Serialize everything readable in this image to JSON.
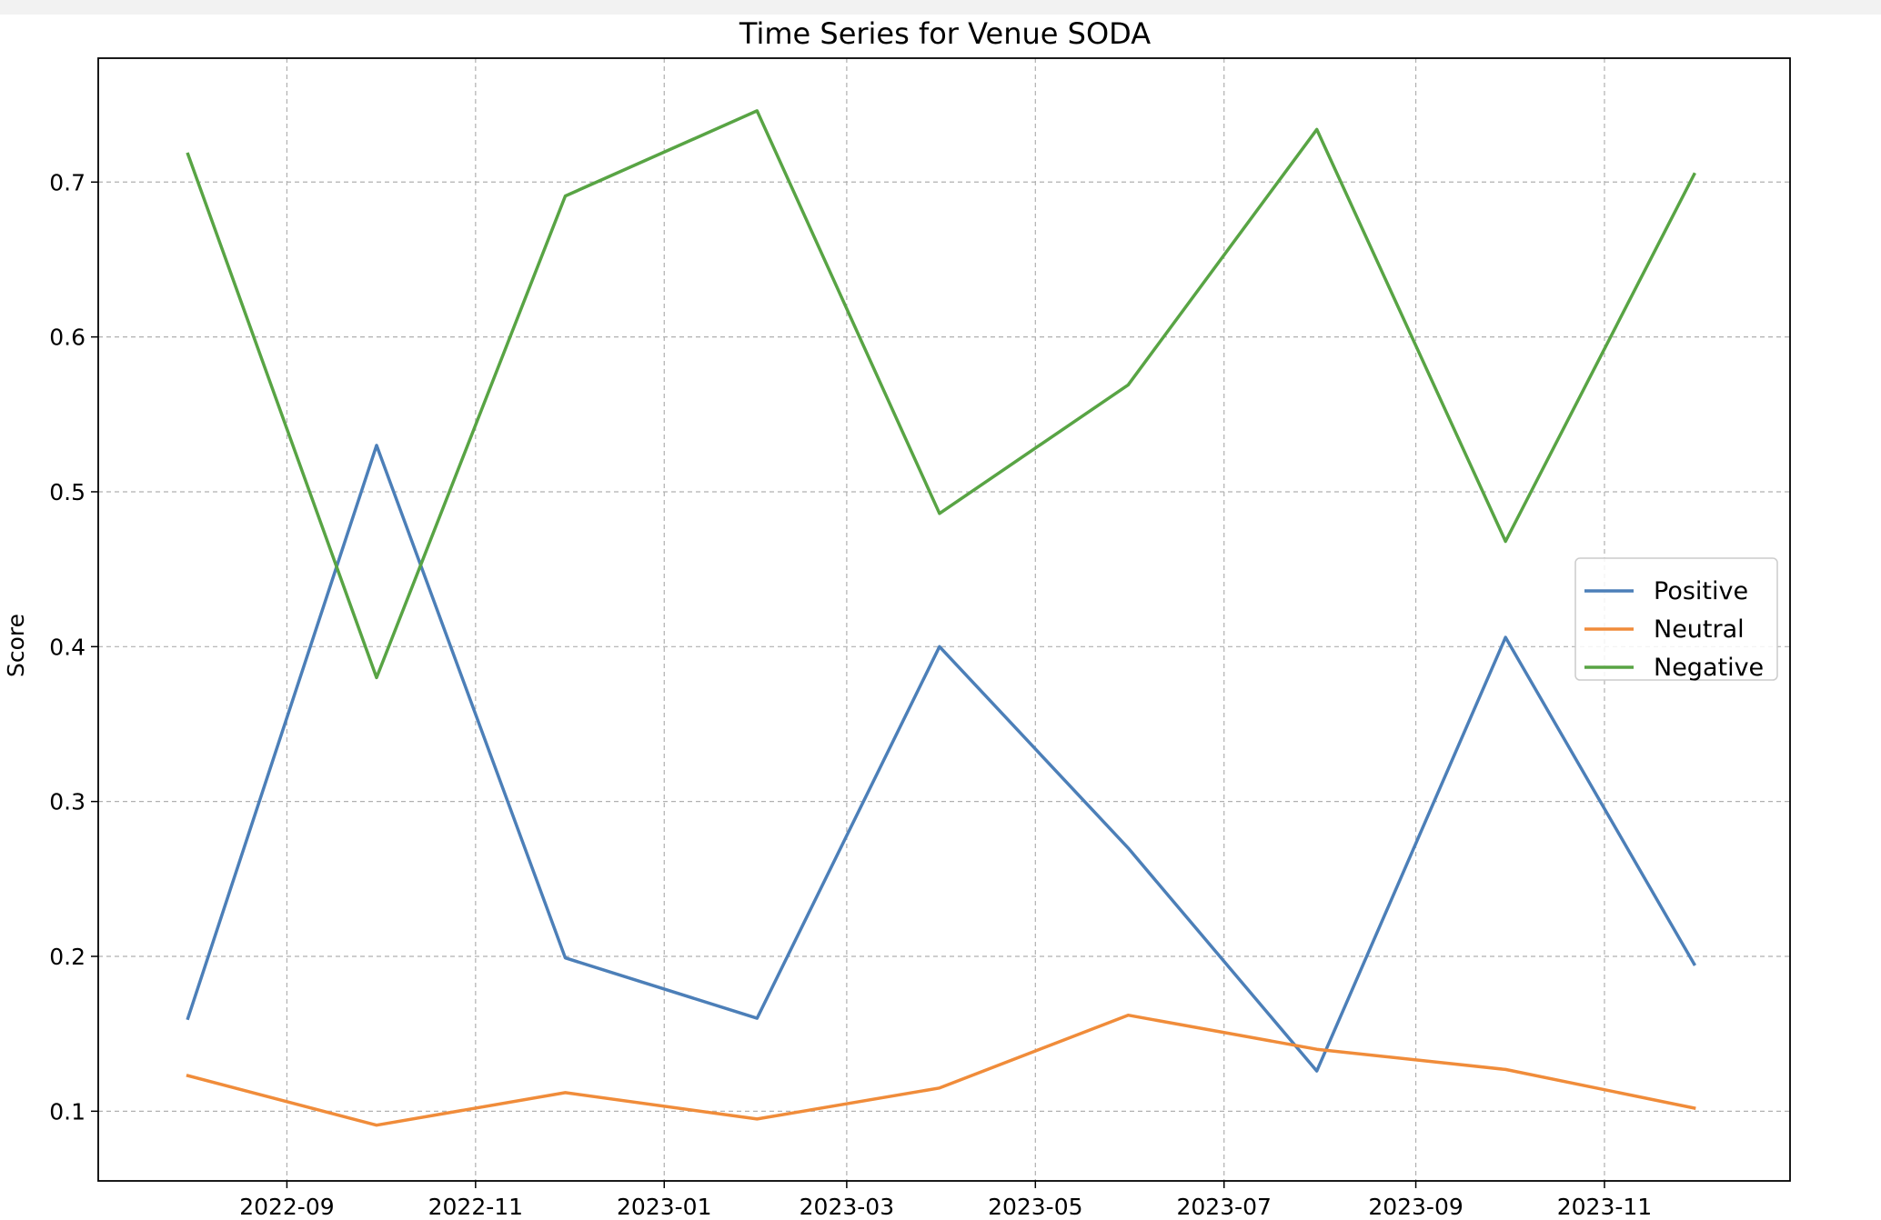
{
  "chart_data": {
    "type": "line",
    "title": "Time Series for Venue SODA",
    "xlabel": "",
    "ylabel": "Score",
    "x_axis_type": "date",
    "xlim": [
      "2022-07-02",
      "2023-12-31"
    ],
    "ylim": [
      0.055,
      0.78
    ],
    "grid": true,
    "legend_position": "center-right",
    "x_ticks": [
      "2022-09-01",
      "2022-11-01",
      "2023-01-01",
      "2023-03-01",
      "2023-05-01",
      "2023-07-01",
      "2023-09-01",
      "2023-11-01"
    ],
    "x_tick_labels": [
      "2022-09",
      "2022-11",
      "2023-01",
      "2023-03",
      "2023-05",
      "2023-07",
      "2023-09",
      "2023-11"
    ],
    "y_ticks": [
      0.1,
      0.2,
      0.3,
      0.4,
      0.5,
      0.6,
      0.7
    ],
    "y_tick_labels": [
      "0.1",
      "0.2",
      "0.3",
      "0.4",
      "0.5",
      "0.6",
      "0.7"
    ],
    "x": [
      "2022-07-31",
      "2022-09-30",
      "2022-11-30",
      "2023-01-31",
      "2023-03-31",
      "2023-05-31",
      "2023-07-31",
      "2023-09-30",
      "2023-11-30"
    ],
    "series": [
      {
        "name": "Positive",
        "color": "#4c7fb8",
        "values": [
          0.16,
          0.53,
          0.199,
          0.16,
          0.4,
          0.27,
          0.126,
          0.406,
          0.195
        ]
      },
      {
        "name": "Neutral",
        "color": "#f08c3a",
        "values": [
          0.123,
          0.091,
          0.112,
          0.095,
          0.115,
          0.162,
          0.14,
          0.127,
          0.102
        ]
      },
      {
        "name": "Negative",
        "color": "#58a444",
        "values": [
          0.718,
          0.38,
          0.691,
          0.746,
          0.486,
          0.569,
          0.734,
          0.468,
          0.705
        ]
      }
    ]
  }
}
